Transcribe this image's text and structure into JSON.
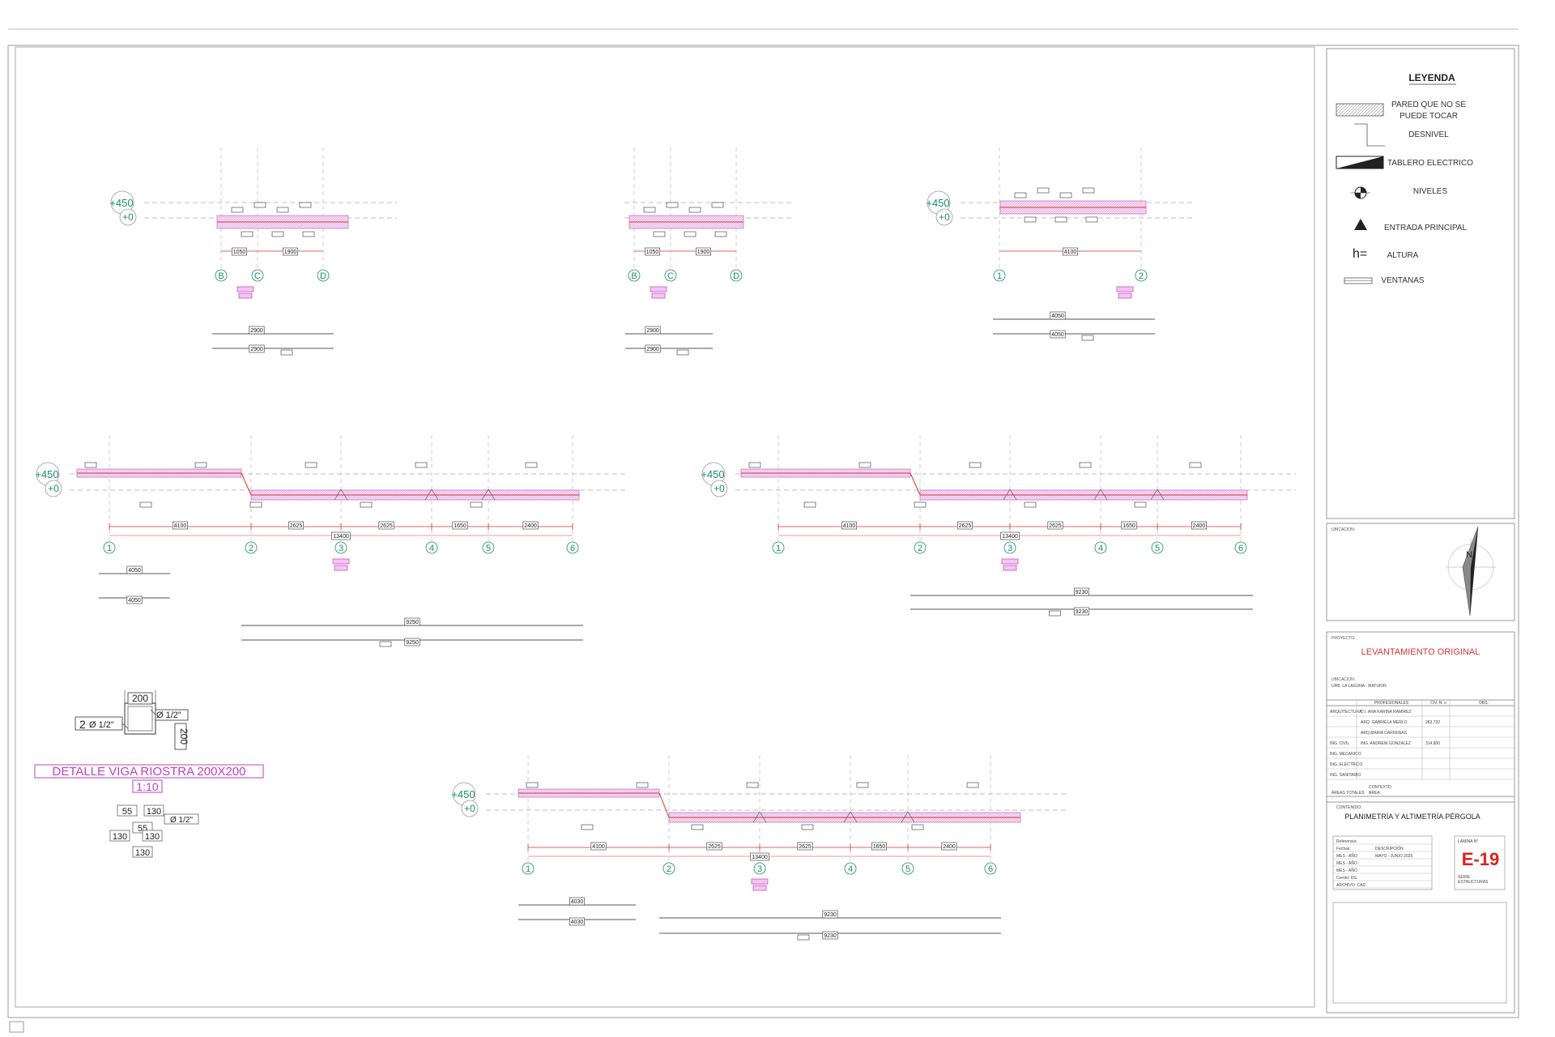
{
  "legend": {
    "title": "LEYENDA",
    "items": [
      {
        "icon": "hatched-wall-icon",
        "label_lines": [
          "PARED QUE NO SE",
          "PUEDE TOCAR"
        ]
      },
      {
        "icon": "level-step-icon",
        "label_lines": [
          "DESNIVEL"
        ]
      },
      {
        "icon": "electrical-panel-icon",
        "label_lines": [
          "TABLERO ELECTRICO"
        ]
      },
      {
        "icon": "level-marker-icon",
        "label_lines": [
          "NIVELES"
        ]
      },
      {
        "icon": "main-entrance-triangle-icon",
        "label_lines": [
          "ENTRADA PRINCIPAL"
        ]
      },
      {
        "icon": "height-symbol-icon",
        "symbol": "h=",
        "label_lines": [
          "ALTURA"
        ]
      },
      {
        "icon": "window-lines-icon",
        "label_lines": [
          "VENTANAS"
        ]
      }
    ]
  },
  "location": {
    "label": "UBICACION:"
  },
  "project": {
    "label": "PROYECTO:",
    "title": "LEVANTAMIENTO ORIGINAL",
    "location_label": "UBICACION:",
    "location_value": "URB. LA LAGUNA  -  MATURIN",
    "header": [
      "PROFESIONALES",
      "CIV. N.  o",
      "OBS."
    ],
    "professionals": [
      {
        "area": "ARQUITECTURA",
        "name": "D.I. ANA KARINA RAMIREZ",
        "civ": ""
      },
      {
        "area": "",
        "name": "ARQ. GABRIELA MERLO",
        "civ": "283.732"
      },
      {
        "area": "",
        "name": "ARQ.MARIA CARDENAS",
        "civ": ""
      },
      {
        "area": "ING. CIVIL",
        "name": "ING. ANDREW GONZALEZ",
        "civ": "314.800"
      },
      {
        "area": "ING. MECANICO",
        "name": "",
        "civ": ""
      },
      {
        "area": "ING. ELECTRICO",
        "name": "",
        "civ": ""
      },
      {
        "area": "ING. SANITARIO",
        "name": "",
        "civ": ""
      }
    ],
    "context_label": "CONTEXTO:",
    "areas_label": "AREAS TOTALES",
    "area_label": "AREA:",
    "content_label": "CONTENIDO:",
    "content_value": "PLANIMETRÍA Y ALTIMETRÍA PÉRGOLA",
    "refs": [
      "Referencia:",
      "Fechas:",
      "MES - AÑO",
      "MES - AÑO",
      "MES - AÑO",
      "Cerrito: DG",
      "ARCHIVO: CAD"
    ],
    "ref_values": [
      "",
      "DESCRIPCIÓN",
      "MAYO - JUNIO 2025",
      "",
      "",
      "",
      ""
    ],
    "sheet_label": "LAMINA N°",
    "sheet_number": "E-19",
    "series_label": "SERIE:",
    "series_value": "ESTRUCTURAS"
  },
  "levels": {
    "top": "+450",
    "bottom": "+0"
  },
  "detail": {
    "title": "DETALLE VIGA RIOSTRA 200X200",
    "scale": "1:10",
    "dim": "200",
    "bar_count": "2",
    "bar_dia": "Ø 1/2\"",
    "stirrup_dims": [
      "55",
      "130",
      "55",
      "130",
      "130",
      "130"
    ]
  },
  "small_views": [
    {
      "axes": [
        "B",
        "C",
        "D"
      ],
      "spans": [
        "1050",
        "1900"
      ],
      "length": "2900"
    },
    {
      "axes": [
        "B",
        "C",
        "D"
      ],
      "spans": [
        "1050",
        "1900"
      ],
      "length": "2900"
    },
    {
      "axes": [
        "1",
        "2"
      ],
      "spans": [
        "4100"
      ],
      "length": "4050"
    }
  ],
  "long_views": [
    {
      "axes": [
        "1",
        "2",
        "3",
        "4",
        "5",
        "6"
      ],
      "spans": [
        "4100",
        "2625",
        "2625",
        "1650",
        "2400"
      ],
      "total": "13400",
      "length": "9250",
      "extra": "4050"
    },
    {
      "axes": [
        "1",
        "2",
        "3",
        "4",
        "5",
        "6"
      ],
      "spans": [
        "4100",
        "2625",
        "2625",
        "1650",
        "2400"
      ],
      "total": "13400",
      "length": "9230"
    },
    {
      "axes": [
        "1",
        "2",
        "3",
        "4",
        "5",
        "6"
      ],
      "spans": [
        "4100",
        "2625",
        "2625",
        "1650",
        "2400"
      ],
      "total": "13400",
      "length": "9230",
      "extra": "4030"
    }
  ]
}
